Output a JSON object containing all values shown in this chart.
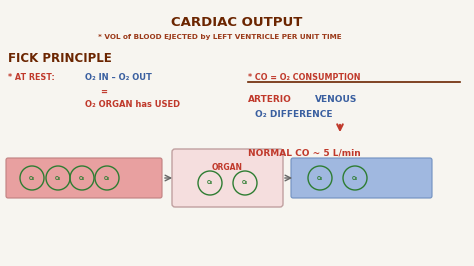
{
  "bg_color": "#f7f5f0",
  "title": "CARDIAC OUTPUT",
  "title_color": "#6b2500",
  "subtitle": "* VOL of BLOOD EJECTED by LEFT VENTRICLE PER UNIT TIME",
  "subtitle_color": "#9b3a1a",
  "fick_title": "FICK PRINCIPLE",
  "fick_color": "#6b2500",
  "at_rest_label": "* AT REST:",
  "at_rest_color": "#c0392b",
  "o2_in_out": "O₂ IN – O₂ OUT",
  "equals": "=",
  "o2_organ": "O₂ ORGAN has USED",
  "blue_color": "#3a5fa0",
  "red_color": "#c0392b",
  "co_label": "* CO = O₂ CONSUMPTION",
  "arterio_color": "#c0392b",
  "venous_color": "#3a5fa0",
  "arterio_text": "ARTERIO",
  "venous_text": "VENOUS",
  "o2_diff": "O₂ DIFFERENCE",
  "normal_co": "NORMAL CO ~ 5 L/min",
  "normal_co_color": "#c0392b",
  "artery_color": "#e8a0a0",
  "vein_color": "#a0b8e0",
  "organ_fill": "#f5dede",
  "organ_border": "#c0a0a0",
  "o2_circle_color": "#2e7d32",
  "fraction_line_color": "#6b2500"
}
